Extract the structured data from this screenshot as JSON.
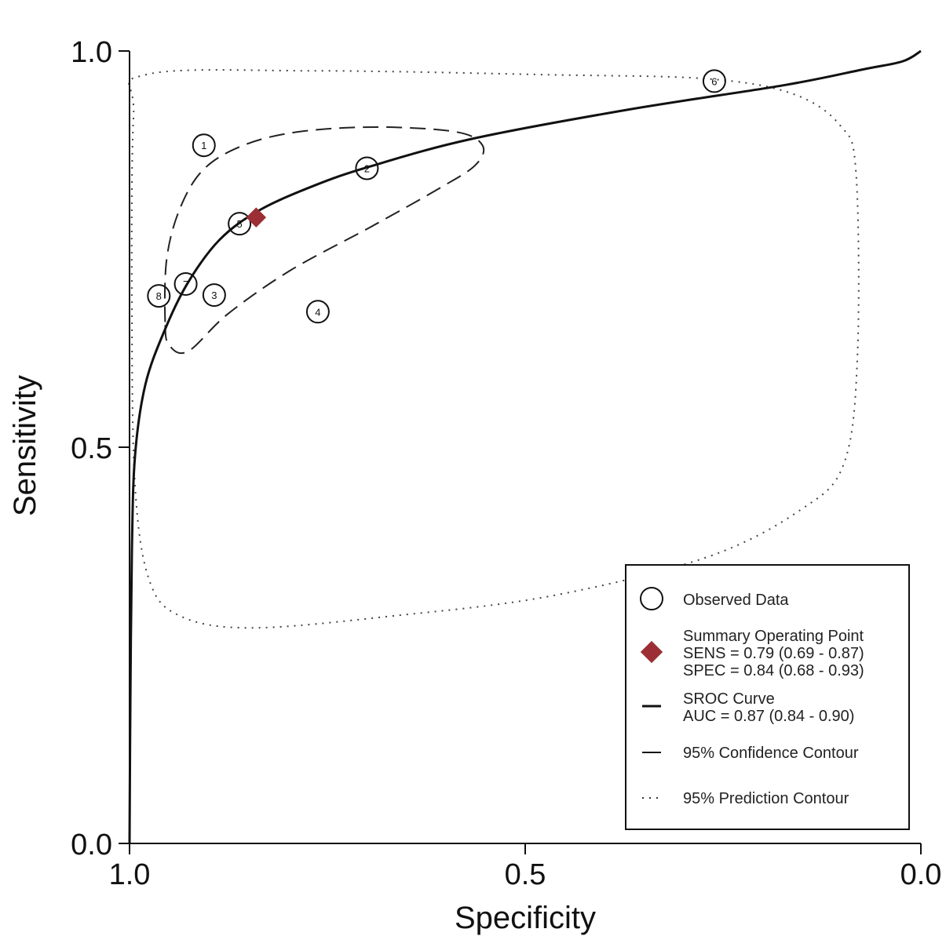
{
  "chart_data": {
    "type": "scatter",
    "title": "",
    "xlabel": "Specificity",
    "ylabel": "Sensitivity",
    "xlim": [
      1.0,
      0.0
    ],
    "ylim": [
      0.0,
      1.0
    ],
    "x_ticks": [
      "1.0",
      "0.5",
      "0.0"
    ],
    "x_tick_values": [
      1.0,
      0.5,
      0.0
    ],
    "y_ticks": [
      "0.0",
      "0.5",
      "1.0"
    ],
    "y_tick_values": [
      0.0,
      0.5,
      1.0
    ],
    "grid": false,
    "legend_position": "bottom-right",
    "observed": [
      {
        "label": "1",
        "spec": 0.906,
        "sens": 0.881
      },
      {
        "label": "2",
        "spec": 0.7,
        "sens": 0.852
      },
      {
        "label": "3",
        "spec": 0.893,
        "sens": 0.692
      },
      {
        "label": "4",
        "spec": 0.762,
        "sens": 0.671
      },
      {
        "label": "5",
        "spec": 0.861,
        "sens": 0.782
      },
      {
        "label": "6",
        "spec": 0.261,
        "sens": 0.962
      },
      {
        "label": "7",
        "spec": 0.929,
        "sens": 0.706
      },
      {
        "label": "8",
        "spec": 0.963,
        "sens": 0.691
      }
    ],
    "summary_point": {
      "spec": 0.84,
      "sens": 0.79,
      "color": "#9b2f35"
    },
    "sroc_curve": [
      [
        1,
        0
      ],
      [
        0.999,
        0.173
      ],
      [
        0.997,
        0.371
      ],
      [
        0.993,
        0.49
      ],
      [
        0.98,
        0.579
      ],
      [
        0.955,
        0.649
      ],
      [
        0.926,
        0.708
      ],
      [
        0.886,
        0.762
      ],
      [
        0.836,
        0.799
      ],
      [
        0.767,
        0.83
      ],
      [
        0.697,
        0.854
      ],
      [
        0.568,
        0.889
      ],
      [
        0.37,
        0.926
      ],
      [
        0.172,
        0.957
      ],
      [
        0.072,
        0.977
      ],
      [
        0.023,
        0.987
      ],
      [
        0,
        1
      ]
    ],
    "confidence_contour": [
      [
        0.955,
        0.658
      ],
      [
        0.953,
        0.738
      ],
      [
        0.936,
        0.802
      ],
      [
        0.906,
        0.851
      ],
      [
        0.856,
        0.881
      ],
      [
        0.787,
        0.898
      ],
      [
        0.688,
        0.904
      ],
      [
        0.588,
        0.898
      ],
      [
        0.554,
        0.881
      ],
      [
        0.563,
        0.856
      ],
      [
        0.608,
        0.827
      ],
      [
        0.697,
        0.777
      ],
      [
        0.797,
        0.723
      ],
      [
        0.876,
        0.668
      ],
      [
        0.926,
        0.621
      ],
      [
        0.95,
        0.629
      ]
    ],
    "prediction_contour": [
      [
        0.98,
        0.97
      ],
      [
        0.767,
        0.975
      ],
      [
        0.469,
        0.97
      ],
      [
        0.271,
        0.965
      ],
      [
        0.162,
        0.946
      ],
      [
        0.102,
        0.906
      ],
      [
        0.082,
        0.847
      ],
      [
        0.08,
        0.619
      ],
      [
        0.097,
        0.48
      ],
      [
        0.152,
        0.421
      ],
      [
        0.271,
        0.361
      ],
      [
        0.469,
        0.312
      ],
      [
        0.668,
        0.287
      ],
      [
        0.846,
        0.272
      ],
      [
        0.936,
        0.287
      ],
      [
        0.975,
        0.332
      ],
      [
        0.993,
        0.45
      ],
      [
        0.997,
        0.668
      ],
      [
        0.995,
        0.916
      ]
    ],
    "legend": {
      "observed": "Observed Data",
      "summary_title": "Summary Operating Point",
      "sens_text": "SENS = 0.79 (0.69 - 0.87)",
      "spec_text": "SPEC = 0.84 (0.68 - 0.93)",
      "sroc_title": "SROC Curve",
      "auc_text": "AUC = 0.87 (0.84 - 0.90)",
      "confidence": "95% Confidence Contour",
      "prediction": "95% Prediction Contour"
    }
  }
}
